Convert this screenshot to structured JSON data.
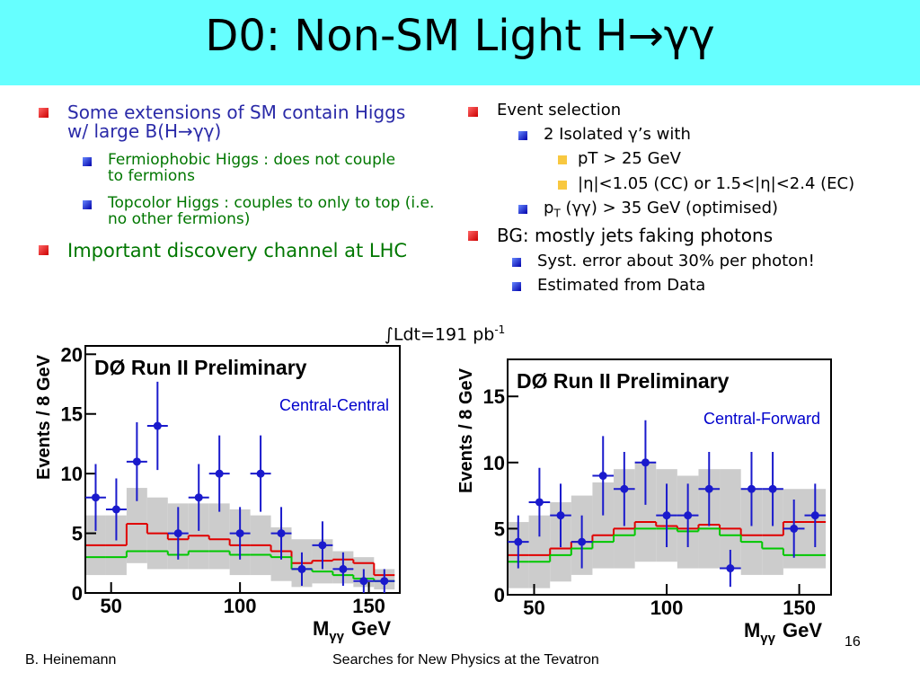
{
  "title": "D0: Non-SM Light H→γγ",
  "left_bullets": [
    {
      "text": "Some extensions of SM contain Higgs w/ large B(H→γγ)",
      "sub": [
        "Fermiophobic Higgs : does not couple to fermions",
        "Topcolor Higgs : couples to only to top (i.e. no other fermions)"
      ]
    },
    {
      "text": "Important discovery channel at LHC"
    }
  ],
  "right_bullets": [
    {
      "text": "Event selection",
      "sub": [
        {
          "text": "2 Isolated γ’s with",
          "sub": [
            "pT > 25 GeV",
            "|η|<1.05 (CC) or 1.5<|η|<2.4 (EC)"
          ]
        },
        {
          "parts": [
            "p",
            "T",
            " (γγ) > 35 GeV (optimised)"
          ]
        }
      ]
    },
    {
      "text": "BG: mostly jets faking photons",
      "sub": [
        "Syst. error about 30% per photon!",
        "Estimated from Data"
      ]
    }
  ],
  "luminosity": {
    "text": "∫Ldt=191 pb",
    "sup": "-1"
  },
  "footer": {
    "author": "B. Heinemann",
    "talk": "Searches for New Physics at the Tevatron",
    "page": 16
  },
  "chart_data": [
    {
      "type": "errorbar",
      "title": "DØ Run II Preliminary",
      "label": "Central-Central",
      "ylabel": "Events / 8 GeV",
      "xlabel": {
        "main": "M",
        "sub": "γγ",
        "unit": "GeV"
      },
      "xlim": [
        40,
        162
      ],
      "ylim": [
        0,
        20.7
      ],
      "xticks": [
        50,
        100,
        150
      ],
      "yticks": [
        0,
        5,
        10,
        15,
        20
      ],
      "bins": [
        40,
        48,
        56,
        64,
        72,
        80,
        88,
        96,
        104,
        112,
        120,
        128,
        136,
        144,
        152,
        160
      ],
      "x": [
        44,
        52,
        60,
        68,
        76,
        84,
        92,
        100,
        108,
        116,
        124,
        132,
        140,
        148,
        156
      ],
      "values": [
        8,
        7,
        11,
        14,
        5,
        8,
        10,
        5,
        10,
        5,
        2,
        4,
        2,
        1,
        1
      ],
      "errors": [
        2.8,
        2.6,
        3.3,
        3.7,
        2.2,
        2.8,
        3.2,
        2.2,
        3.2,
        2.2,
        1.4,
        2,
        1.4,
        1,
        1
      ],
      "color": "#1a1acc",
      "band": {
        "color": "#cccccc",
        "lower": [
          1.5,
          1.5,
          2.5,
          2,
          2,
          2,
          2,
          1.5,
          1.5,
          1,
          0.5,
          0.8,
          0.8,
          0.5,
          0.3
        ],
        "upper": [
          6.5,
          6.5,
          8.8,
          8,
          7.5,
          7.5,
          7.5,
          7,
          6.5,
          5.5,
          4.5,
          4.5,
          3.5,
          3,
          2
        ]
      },
      "series": [
        {
          "color": "#e00000",
          "values": [
            4,
            4,
            5.8,
            5,
            4.5,
            4.8,
            4.5,
            4,
            4,
            3.5,
            2.5,
            2.7,
            2.8,
            2.5,
            1.5
          ]
        },
        {
          "color": "#00c800",
          "values": [
            3,
            3,
            3.5,
            3.5,
            3.2,
            3.5,
            3.5,
            3.2,
            3.2,
            3,
            2,
            1.8,
            1.5,
            1.2,
            1
          ]
        }
      ]
    },
    {
      "type": "errorbar",
      "title": "DØ Run II Preliminary",
      "label": "Central-Forward",
      "ylabel": "Events / 8 GeV",
      "xlabel": {
        "main": "M",
        "sub": "γγ",
        "unit": "GeV"
      },
      "xlim": [
        40,
        162
      ],
      "ylim": [
        0,
        17.8
      ],
      "xticks": [
        50,
        100,
        150
      ],
      "yticks": [
        0,
        5,
        10,
        15
      ],
      "bins": [
        40,
        48,
        56,
        64,
        72,
        80,
        88,
        96,
        104,
        112,
        120,
        128,
        136,
        144,
        152,
        160
      ],
      "x": [
        44,
        52,
        60,
        68,
        76,
        84,
        92,
        100,
        108,
        116,
        124,
        132,
        140,
        148,
        156
      ],
      "values": [
        4,
        7,
        6,
        4,
        9,
        8,
        10,
        6,
        6,
        8,
        2,
        8,
        8,
        5,
        6
      ],
      "errors": [
        2,
        2.6,
        2.4,
        2,
        3,
        2.8,
        3.2,
        2.4,
        2.4,
        2.8,
        1.4,
        2.8,
        2.8,
        2.2,
        2.4
      ],
      "color": "#1a1acc",
      "band": {
        "color": "#cccccc",
        "lower": [
          0.5,
          0.5,
          1,
          1.5,
          2,
          2,
          2.5,
          2.5,
          2,
          2,
          2,
          1.5,
          1.5,
          2,
          2
        ],
        "upper": [
          5.5,
          6,
          7,
          7.5,
          8.5,
          9.5,
          10,
          9.5,
          9,
          9.5,
          9.5,
          8,
          8,
          8,
          8
        ]
      },
      "series": [
        {
          "color": "#e00000",
          "values": [
            3,
            3,
            3.5,
            4,
            4.5,
            5,
            5.5,
            5.2,
            5,
            5.3,
            5,
            4.5,
            4.5,
            5.5,
            5.5
          ]
        },
        {
          "color": "#00c800",
          "values": [
            2.5,
            2.5,
            3,
            3.5,
            4,
            4.5,
            5,
            5,
            4.8,
            5,
            4.5,
            4,
            3.5,
            3,
            3
          ]
        }
      ]
    }
  ]
}
